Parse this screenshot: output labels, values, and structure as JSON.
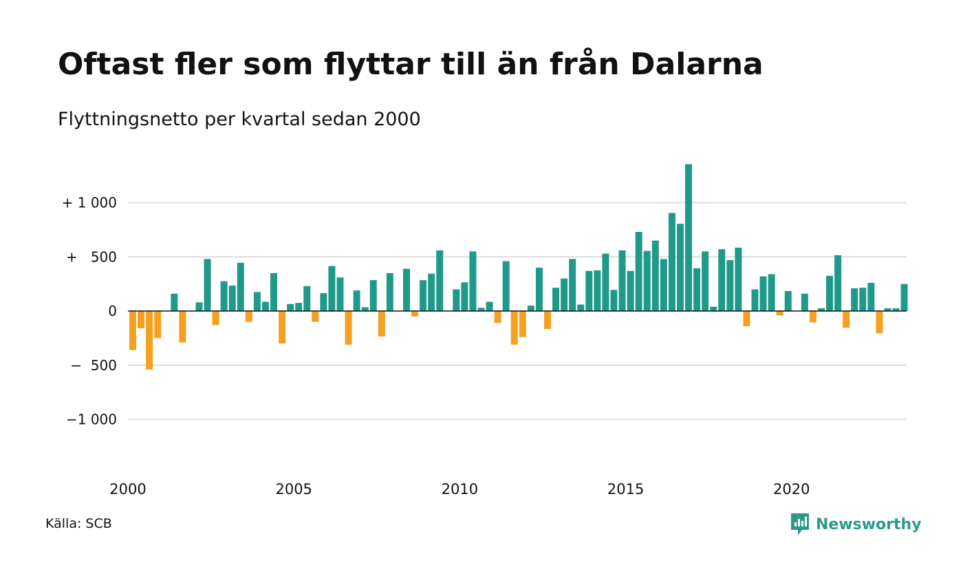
{
  "title": "Oftast fler som flyttar till än från Dalarna",
  "subtitle": "Flyttningsnetto per kvartal sedan 2000",
  "source": "Källa: SCB",
  "brand": "Newsworthy",
  "colors": {
    "positive": "#1f9a8a",
    "negative": "#f5a020",
    "grid": "#dddddd",
    "zero_line": "#111111",
    "brand": "#2c9a8b"
  },
  "chart_data": {
    "type": "bar",
    "x_start": 2000,
    "frequency": "quarterly",
    "ylim": [
      -1230,
      1400
    ],
    "yticks": [
      {
        "value": 1000,
        "label": "+ 1 000"
      },
      {
        "value": 500,
        "label": "+   500"
      },
      {
        "value": 0,
        "label": "0"
      },
      {
        "value": -500,
        "label": "−  500"
      },
      {
        "value": -1000,
        "label": "−1 000"
      }
    ],
    "xticks": [
      {
        "value": 2000,
        "label": "2000"
      },
      {
        "value": 2005,
        "label": "2005"
      },
      {
        "value": 2010,
        "label": "2010"
      },
      {
        "value": 2015,
        "label": "2015"
      },
      {
        "value": 2020,
        "label": "2020"
      }
    ],
    "values": [
      -360,
      -160,
      -540,
      -250,
      0,
      160,
      -290,
      0,
      80,
      480,
      -130,
      275,
      235,
      445,
      -100,
      175,
      85,
      350,
      -300,
      65,
      75,
      230,
      -100,
      165,
      415,
      310,
      -310,
      190,
      35,
      285,
      -235,
      350,
      0,
      390,
      -50,
      285,
      345,
      560,
      0,
      200,
      265,
      550,
      30,
      85,
      -110,
      460,
      -310,
      -240,
      50,
      400,
      -165,
      215,
      300,
      480,
      60,
      370,
      375,
      530,
      195,
      560,
      370,
      730,
      555,
      650,
      480,
      905,
      805,
      1355,
      395,
      550,
      40,
      570,
      470,
      585,
      -140,
      200,
      320,
      340,
      -40,
      185,
      0,
      160,
      -105,
      25,
      325,
      515,
      -155,
      210,
      215,
      260,
      -205,
      25,
      25,
      250
    ]
  }
}
